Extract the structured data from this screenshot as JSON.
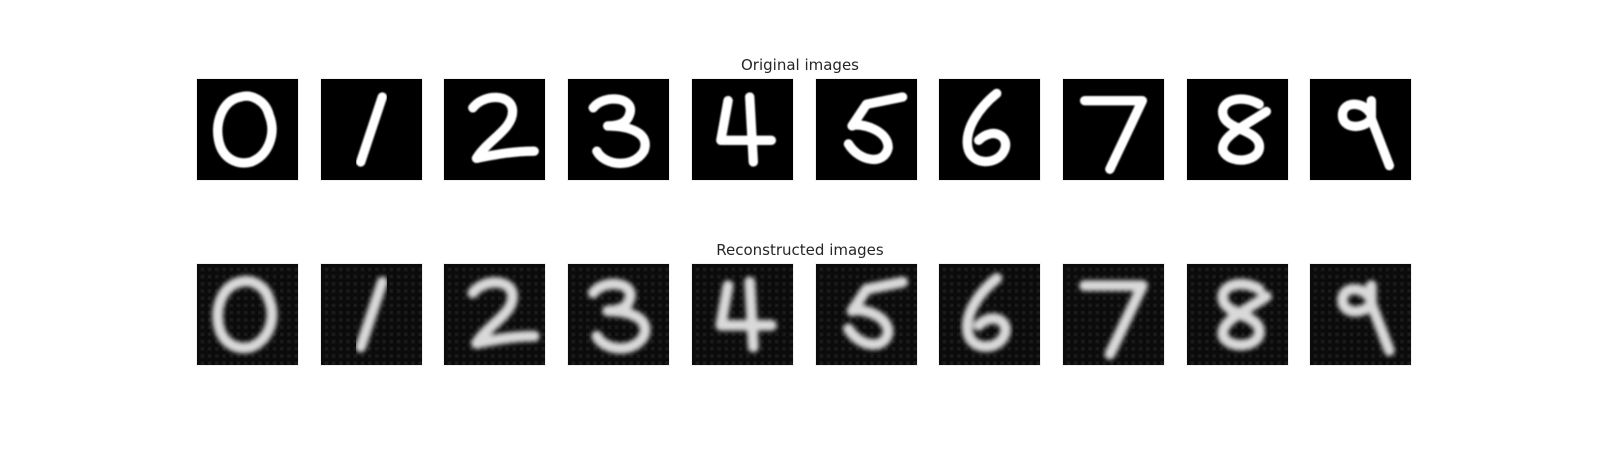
{
  "figure": {
    "original_title": "Original images",
    "reconstructed_title": "Reconstructed images",
    "digits": [
      "0",
      "1",
      "2",
      "3",
      "4",
      "5",
      "6",
      "7",
      "8",
      "9"
    ],
    "colors": {
      "background": "#ffffff",
      "image_background": "#000000",
      "digit_stroke": "#ffffff",
      "reconstructed_stroke": "#d9d9d9",
      "title_text": "#262626"
    }
  }
}
